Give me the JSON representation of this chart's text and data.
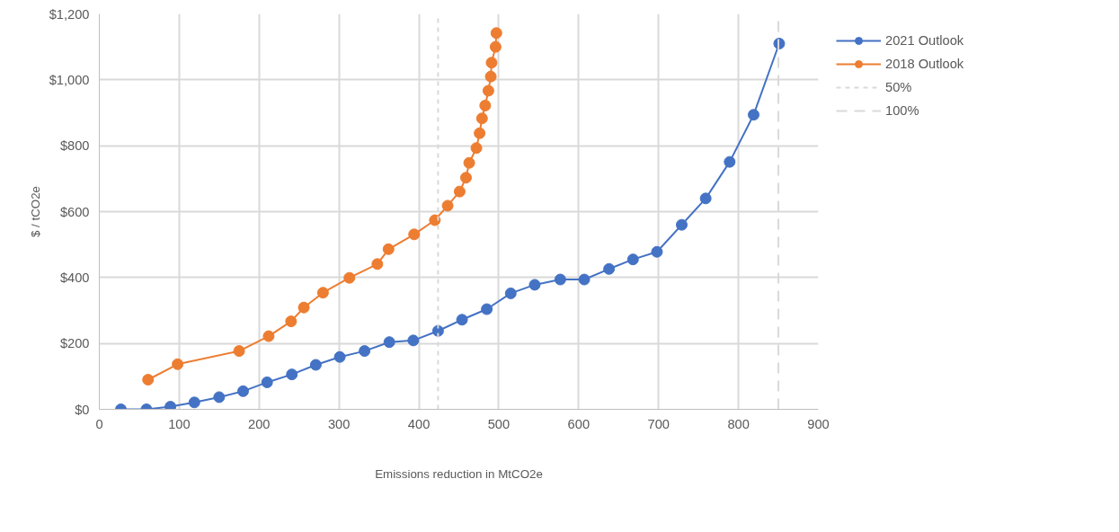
{
  "chart_data": {
    "type": "line",
    "xlabel": "Emissions reduction in MtCO2e",
    "ylabel": "$ / tCO2e",
    "xlim": [
      0,
      900
    ],
    "xticks": [
      0,
      100,
      200,
      300,
      400,
      500,
      600,
      700,
      800,
      900
    ],
    "ylim": [
      0,
      1200
    ],
    "yticks": [
      {
        "value": 0,
        "label": "$0"
      },
      {
        "value": 200,
        "label": "$200"
      },
      {
        "value": 400,
        "label": "$400"
      },
      {
        "value": 600,
        "label": "$600"
      },
      {
        "value": 800,
        "label": "$800"
      },
      {
        "value": 1000,
        "label": "$1,000"
      },
      {
        "value": 1200,
        "label": "$1,200"
      }
    ],
    "grid": true,
    "legend": "right",
    "marker": "circle",
    "line_style": "solid",
    "series": [
      {
        "name": "2021 Outlook",
        "color": "#4472c4",
        "x": [
          27,
          59,
          89,
          119,
          150,
          180,
          210,
          241,
          271,
          301,
          332,
          363,
          393,
          424,
          454,
          485,
          515,
          545,
          577,
          607,
          638,
          668,
          698,
          729,
          759,
          789,
          819,
          851
        ],
        "values": [
          0,
          0,
          8,
          21,
          37,
          55,
          82,
          106,
          135,
          159,
          177,
          204,
          209,
          238,
          272,
          304,
          352,
          378,
          394,
          394,
          426,
          455,
          478,
          560,
          640,
          751,
          894,
          1110
        ]
      },
      {
        "name": "2018 Outlook",
        "color": "#ed7d31",
        "x": [
          61,
          98,
          175,
          212,
          240,
          256,
          280,
          313,
          348,
          362,
          394,
          420,
          436,
          451,
          459,
          463,
          472,
          476,
          479,
          483,
          487,
          490,
          491,
          496,
          497
        ],
        "values": [
          90,
          137,
          177,
          222,
          267,
          309,
          354,
          399,
          441,
          486,
          531,
          574,
          618,
          661,
          703,
          748,
          793,
          838,
          883,
          922,
          967,
          1010,
          1052,
          1100,
          1142
        ]
      },
      {
        "name": "50%",
        "color": "#d9d9d9",
        "x": [
          424,
          424
        ],
        "values": [
          0,
          1200
        ],
        "marker": "none",
        "line_style": "dotted"
      },
      {
        "name": "100%",
        "color": "#d9d9d9",
        "x": [
          850,
          850
        ],
        "values": [
          0,
          1200
        ],
        "marker": "none",
        "line_style": "dashed"
      }
    ]
  }
}
